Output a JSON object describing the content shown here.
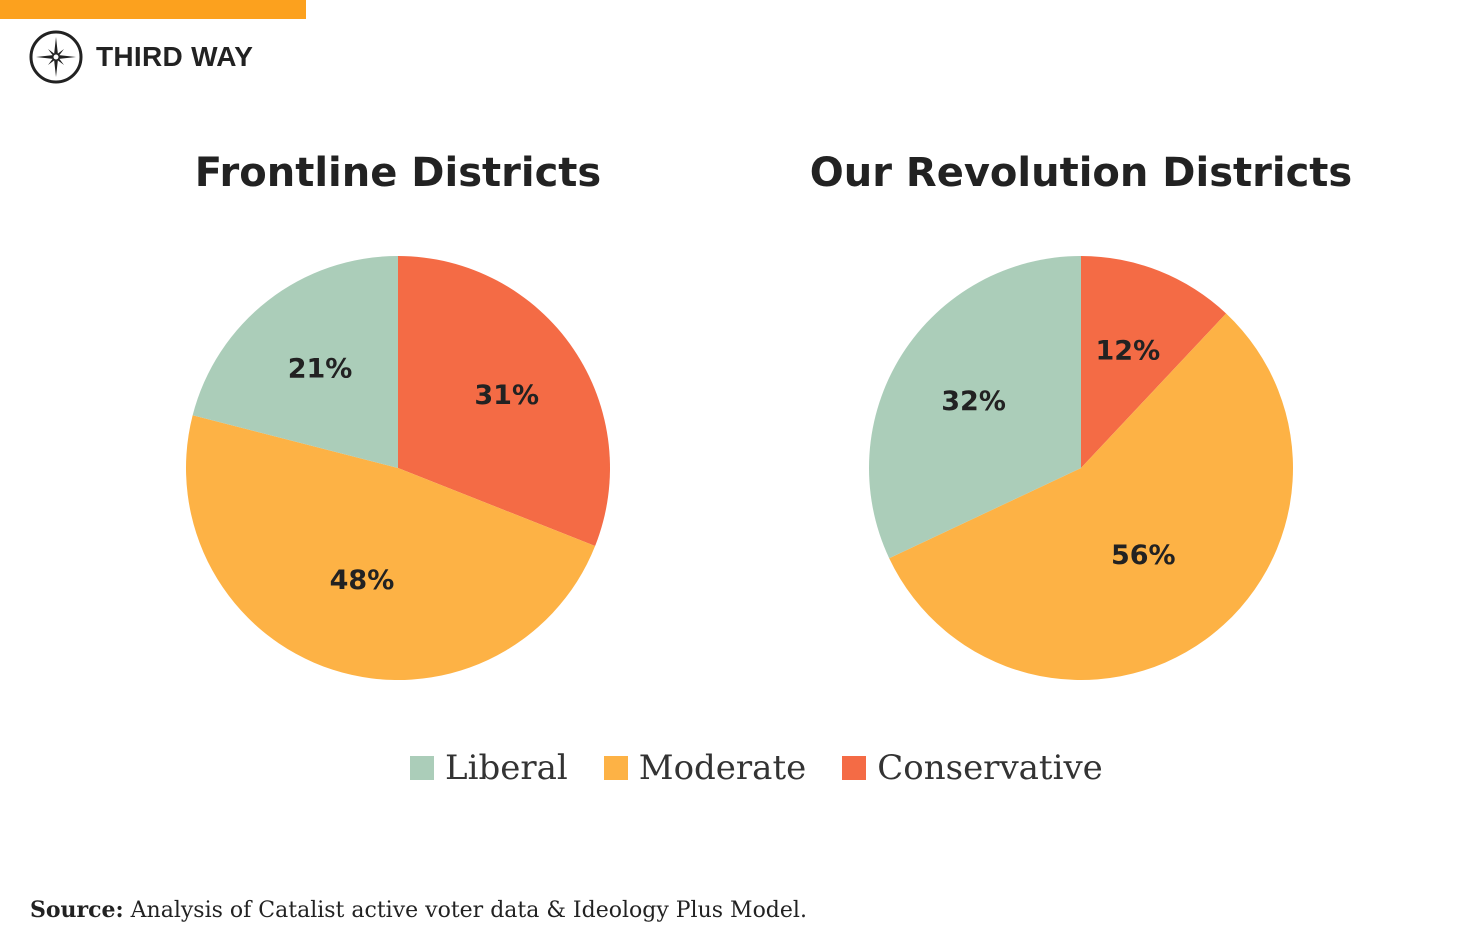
{
  "brand": {
    "name": "THIRD WAY",
    "accent_color": "#fca11e"
  },
  "chart_data": [
    {
      "type": "pie",
      "title": "Frontline Districts",
      "categories": [
        "Conservative",
        "Moderate",
        "Liberal"
      ],
      "values": [
        31,
        48,
        21
      ],
      "labels": [
        "31%",
        "48%",
        "21%"
      ],
      "start": "top",
      "direction": "clockwise"
    },
    {
      "type": "pie",
      "title": "Our Revolution Districts",
      "categories": [
        "Conservative",
        "Moderate",
        "Liberal"
      ],
      "values": [
        12,
        56,
        32
      ],
      "labels": [
        "12%",
        "56%",
        "32%"
      ],
      "start": "top",
      "direction": "clockwise"
    }
  ],
  "legend": {
    "placement": "bottom",
    "items": [
      {
        "label": "Liberal",
        "color": "#abcdb9"
      },
      {
        "label": "Moderate",
        "color": "#fdb245"
      },
      {
        "label": "Conservative",
        "color": "#f46b45"
      }
    ]
  },
  "colors": {
    "Liberal": "#abcdb9",
    "Moderate": "#fdb245",
    "Conservative": "#f46b45"
  },
  "source": {
    "label": "Source:",
    "text": " Analysis of Catalist active voter data & Ideology Plus Model."
  }
}
